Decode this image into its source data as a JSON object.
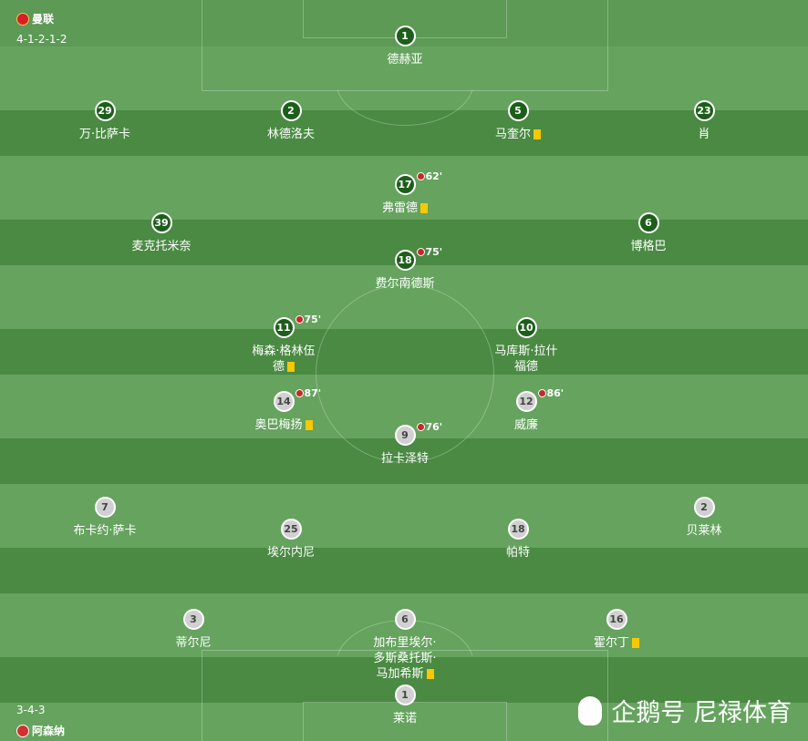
{
  "home": {
    "team": "曼联",
    "formation": "4-1-2-1-2",
    "players": [
      {
        "num": "1",
        "name": "德赫亚",
        "card": false,
        "sub": ""
      },
      {
        "num": "29",
        "name": "万·比萨卡",
        "card": false,
        "sub": ""
      },
      {
        "num": "2",
        "name": "林德洛夫",
        "card": false,
        "sub": ""
      },
      {
        "num": "5",
        "name": "马奎尔",
        "card": true,
        "sub": ""
      },
      {
        "num": "23",
        "name": "肖",
        "card": false,
        "sub": ""
      },
      {
        "num": "17",
        "name": "弗雷德",
        "card": true,
        "sub": "62'"
      },
      {
        "num": "39",
        "name": "麦克托米奈",
        "card": false,
        "sub": ""
      },
      {
        "num": "6",
        "name": "博格巴",
        "card": false,
        "sub": ""
      },
      {
        "num": "18",
        "name": "费尔南德斯",
        "card": false,
        "sub": "75'"
      },
      {
        "num": "11",
        "name": "梅森·格林伍德",
        "card": true,
        "sub": "75'"
      },
      {
        "num": "10",
        "name": "马库斯·拉什福德",
        "card": false,
        "sub": ""
      }
    ]
  },
  "away": {
    "team": "阿森纳",
    "formation": "3-4-3",
    "players": [
      {
        "num": "14",
        "name": "奥巴梅扬",
        "card": true,
        "sub": "87'"
      },
      {
        "num": "12",
        "name": "威廉",
        "card": false,
        "sub": "86'"
      },
      {
        "num": "9",
        "name": "拉卡泽特",
        "card": false,
        "sub": "76'"
      },
      {
        "num": "7",
        "name": "布卡约·萨卡",
        "card": false,
        "sub": ""
      },
      {
        "num": "2",
        "name": "贝莱林",
        "card": false,
        "sub": ""
      },
      {
        "num": "25",
        "name": "埃尔内尼",
        "card": false,
        "sub": ""
      },
      {
        "num": "18",
        "name": "帕特",
        "card": false,
        "sub": ""
      },
      {
        "num": "3",
        "name": "蒂尔尼",
        "card": false,
        "sub": ""
      },
      {
        "num": "6",
        "name": "加布里埃尔·多斯桑托斯·马加希斯",
        "card": true,
        "sub": ""
      },
      {
        "num": "16",
        "name": "霍尔丁",
        "card": true,
        "sub": ""
      },
      {
        "num": "1",
        "name": "莱诺",
        "card": false,
        "sub": ""
      }
    ]
  },
  "watermark": "企鹅号 尼禄体育",
  "colors": {
    "pitch_light": "#5c9a55",
    "pitch_dark": "#4a8a43",
    "home_badge": "#1d5e1b",
    "away_badge": "#d0d0d0",
    "card": "#f8c800"
  }
}
